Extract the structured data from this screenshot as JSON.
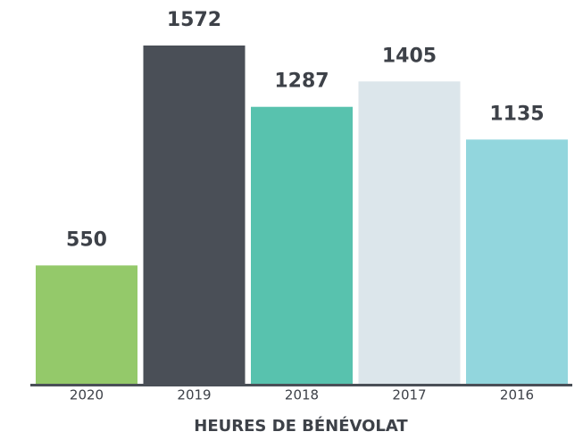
{
  "chart_data": {
    "type": "bar",
    "x_label": "HEURES DE BÉNÉVOLAT",
    "categories": [
      "2020",
      "2019",
      "2018",
      "2017",
      "2016"
    ],
    "values": [
      550,
      1572,
      1287,
      1405,
      1135
    ],
    "colors": [
      "#94c96a",
      "#4a4f57",
      "#58c2ae",
      "#dce6eb",
      "#92d6dd"
    ]
  }
}
